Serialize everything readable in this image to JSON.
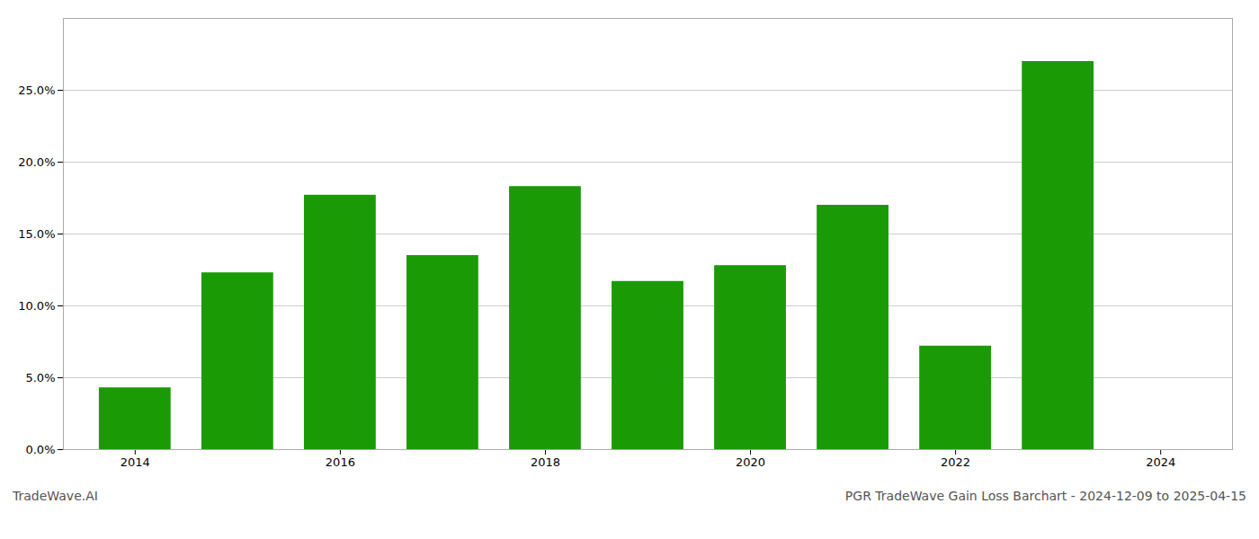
{
  "chart_data": {
    "type": "bar",
    "title": "PGR TradeWave Gain Loss Barchart - 2024-12-09 to 2025-04-15",
    "annotations": [
      "TradeWave.AI"
    ],
    "x": [
      2014,
      2015,
      2016,
      2017,
      2018,
      2019,
      2020,
      2021,
      2022,
      2023
    ],
    "values": [
      0.043,
      0.123,
      0.177,
      0.135,
      0.183,
      0.117,
      0.128,
      0.17,
      0.072,
      0.27
    ],
    "color": "#1a9b06",
    "xlim": [
      2013.3,
      2024.7
    ],
    "xticks": [
      2014,
      2016,
      2018,
      2020,
      2022,
      2024
    ],
    "ylim": [
      0,
      0.3
    ],
    "yticks": [
      {
        "value": 0.0,
        "label": "0.0%"
      },
      {
        "value": 0.05,
        "label": "5.0%"
      },
      {
        "value": 0.1,
        "label": "10.0%"
      },
      {
        "value": 0.15,
        "label": "15.0%"
      },
      {
        "value": 0.2,
        "label": "20.0%"
      },
      {
        "value": 0.25,
        "label": "25.0%"
      }
    ],
    "grid": true
  }
}
